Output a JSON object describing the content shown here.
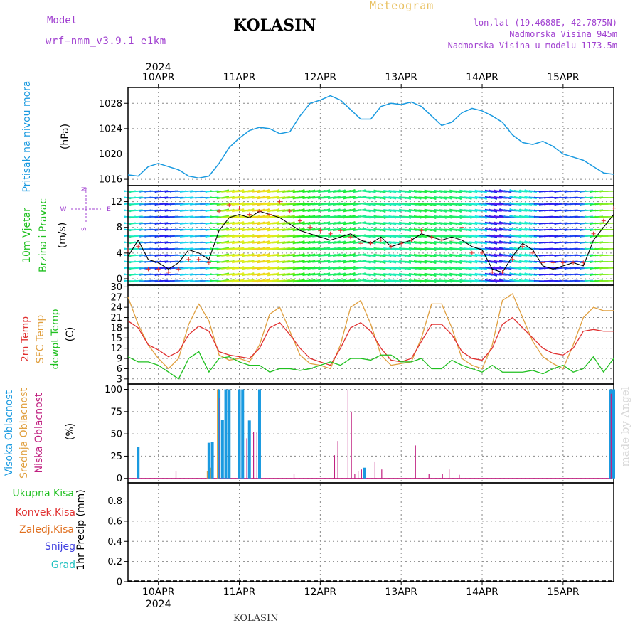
{
  "header": {
    "model_label": "Model",
    "model_name": "wrf−nmm_v3.9.1  e1km",
    "station": "KOLASIN",
    "meteogram_label": "Meteogram",
    "lonlat": "lon,lat (19.4688E, 42.7875N)",
    "elevation": "Nadmorska Visina 945m",
    "model_elevation": "Nadmorska Visina u modelu 1173.5m",
    "footer_station": "KOLASIN",
    "credit": "made by Angel"
  },
  "colors": {
    "model": "#a040d0",
    "station": "#000000",
    "meteogram": "#e8c060",
    "info": "#a040d0",
    "pressure": "#1a9ae0",
    "wind_label": "#20c020",
    "wind_compass": "#a040d0",
    "temp2m": "#e03030",
    "sfc_temp": "#e0a040",
    "dewpoint": "#20c020",
    "high_cloud": "#1a9ae0",
    "mid_cloud": "#e0a040",
    "low_cloud": "#c02080",
    "total_precip": "#20c020",
    "conv_precip": "#e03030",
    "frozen": "#e07020",
    "snow": "#4040e0",
    "hail": "#20c0c0",
    "credit": "#d8d8d8"
  },
  "chart_data": [
    {
      "type": "line",
      "panel": "pressure",
      "ylabel_left": "Pritisak na nivou mora",
      "ylabel_unit": "(hPa)",
      "yticks": [
        1016,
        1020,
        1024,
        1028
      ],
      "ylim": [
        1015,
        1030.5
      ],
      "x_unit": "hours from 2024-04-10 00:00",
      "xlim": [
        -9,
        135
      ],
      "grid": true,
      "series": [
        {
          "values_x": [
            -9,
            -6,
            -3,
            0,
            3,
            6,
            9,
            12,
            15,
            18,
            21,
            24,
            27,
            30,
            33,
            36,
            39,
            42,
            45,
            48,
            51,
            54,
            57,
            60,
            63,
            66,
            69,
            72,
            75,
            78,
            81,
            84,
            87,
            90,
            93,
            96,
            99,
            102,
            105,
            108,
            111,
            114,
            117,
            120,
            123,
            126,
            129,
            132,
            135
          ],
          "values": [
            1016.7,
            1016.5,
            1018.0,
            1018.5,
            1018.0,
            1017.5,
            1016.5,
            1016.2,
            1016.5,
            1018.5,
            1021.0,
            1022.5,
            1023.7,
            1024.2,
            1024.0,
            1023.2,
            1023.5,
            1026.0,
            1028.0,
            1028.5,
            1029.2,
            1028.5,
            1027.0,
            1025.5,
            1025.5,
            1027.5,
            1028.0,
            1027.8,
            1028.2,
            1027.5,
            1026.0,
            1024.5,
            1025.0,
            1026.5,
            1027.2,
            1026.8,
            1026.0,
            1025.0,
            1023.0,
            1021.8,
            1021.5,
            1022.0,
            1021.2,
            1020.0,
            1019.5,
            1019.0,
            1018.0,
            1017.0,
            1016.8
          ]
        }
      ]
    },
    {
      "type": "line",
      "panel": "wind",
      "ylabel_left": [
        "10m Vjetar",
        "Brzina i Pravac"
      ],
      "ylabel_unit": "(m/s)",
      "compass": {
        "n": "N",
        "w": "W",
        "e": "E",
        "s": "S"
      },
      "yticks": [
        0,
        4,
        8,
        12
      ],
      "ylim": [
        -1,
        14.5
      ],
      "x_unit": "hours from 2024-04-10 00:00",
      "xlim": [
        -9,
        135
      ],
      "grid": true,
      "series": [
        {
          "kind": "mean_speed",
          "values_x": [
            -9,
            -6,
            -3,
            0,
            3,
            6,
            9,
            12,
            15,
            18,
            21,
            24,
            27,
            30,
            33,
            36,
            39,
            42,
            45,
            48,
            51,
            54,
            57,
            60,
            63,
            66,
            69,
            72,
            75,
            78,
            81,
            84,
            87,
            90,
            93,
            96,
            99,
            102,
            105,
            108,
            111,
            114,
            117,
            120,
            123,
            126,
            129,
            132,
            135
          ],
          "values": [
            3.5,
            6.0,
            3.0,
            2.5,
            1.5,
            2.5,
            4.5,
            4.0,
            3.0,
            7.5,
            9.5,
            10.0,
            9.5,
            10.5,
            10.0,
            9.5,
            8.5,
            7.5,
            7.0,
            6.5,
            6.0,
            6.5,
            7.0,
            6.0,
            5.5,
            6.5,
            5.0,
            5.5,
            6.0,
            7.0,
            6.5,
            6.0,
            6.5,
            6.0,
            5.0,
            4.5,
            1.5,
            1.0,
            3.5,
            5.5,
            4.5,
            2.0,
            1.5,
            2.0,
            2.5,
            2.0,
            6.0,
            8.0,
            10.0
          ]
        },
        {
          "kind": "gust",
          "values_x": [
            -9,
            -6,
            -3,
            0,
            3,
            6,
            9,
            12,
            15,
            18,
            21,
            24,
            27,
            30,
            33,
            36,
            39,
            42,
            45,
            48,
            51,
            54,
            57,
            60,
            63,
            66,
            69,
            72,
            75,
            78,
            81,
            84,
            87,
            90,
            93,
            96,
            99,
            102,
            105,
            108,
            111,
            114,
            117,
            120,
            123,
            126,
            129,
            132,
            135
          ],
          "values": [
            4.5,
            5.0,
            1.5,
            1.5,
            1.0,
            1.5,
            3.0,
            3.0,
            2.5,
            10.5,
            11.5,
            11.0,
            10.0,
            10.5,
            10.0,
            12.0,
            10.5,
            9.0,
            8.0,
            7.5,
            7.0,
            7.5,
            6.5,
            5.5,
            5.5,
            6.0,
            5.0,
            5.5,
            6.0,
            7.5,
            6.5,
            6.0,
            6.0,
            8.0,
            4.0,
            4.0,
            1.0,
            1.0,
            3.0,
            5.0,
            4.0,
            2.5,
            2.5,
            2.5,
            2.5,
            2.5,
            7.0,
            9.0,
            11.0
          ]
        }
      ]
    },
    {
      "type": "line",
      "panel": "temperature",
      "ylabel_left": [
        "2m Temp",
        "SFC Temp",
        "dewpt Temp"
      ],
      "ylabel_unit": "(C)",
      "yticks": [
        3,
        6,
        9,
        12,
        15,
        18,
        21,
        24,
        27,
        30
      ],
      "ylim": [
        1.5,
        30.5
      ],
      "x_unit": "hours from 2024-04-10 00:00",
      "xlim": [
        -9,
        135
      ],
      "grid": true,
      "series": [
        {
          "name": "2m Temp",
          "values_x": [
            -9,
            -6,
            -3,
            0,
            3,
            6,
            9,
            12,
            15,
            18,
            21,
            24,
            27,
            30,
            33,
            36,
            39,
            42,
            45,
            48,
            51,
            54,
            57,
            60,
            63,
            66,
            69,
            72,
            75,
            78,
            81,
            84,
            87,
            90,
            93,
            96,
            99,
            102,
            105,
            108,
            111,
            114,
            117,
            120,
            123,
            126,
            129,
            132,
            135
          ],
          "values": [
            20,
            18,
            13,
            11.5,
            9.5,
            11,
            16,
            18.5,
            17,
            11,
            10,
            9.5,
            9,
            12,
            18,
            19.5,
            16,
            12,
            9,
            8,
            7,
            12,
            18,
            19.5,
            17,
            12,
            8.5,
            8,
            9,
            14,
            19,
            19,
            16,
            11,
            9,
            8.5,
            12,
            19,
            21,
            18,
            15,
            12,
            10.5,
            10,
            12,
            17,
            17.5,
            17,
            17
          ]
        },
        {
          "name": "SFC Temp",
          "values_x": [
            -9,
            -6,
            -3,
            0,
            3,
            6,
            9,
            12,
            15,
            18,
            21,
            24,
            27,
            30,
            33,
            36,
            39,
            42,
            45,
            48,
            51,
            54,
            57,
            60,
            63,
            66,
            69,
            72,
            75,
            78,
            81,
            84,
            87,
            90,
            93,
            96,
            99,
            102,
            105,
            108,
            111,
            114,
            117,
            120,
            123,
            126,
            129,
            132,
            135
          ],
          "values": [
            27,
            19,
            13,
            9,
            6,
            9,
            19,
            25,
            20,
            10,
            8.5,
            9,
            8,
            13,
            22,
            24,
            17,
            10,
            7.5,
            7,
            6,
            13,
            24,
            26,
            19,
            10,
            7,
            7.5,
            8,
            15,
            25,
            25,
            18,
            9,
            7,
            6,
            13,
            26,
            28,
            21,
            14,
            9.5,
            7.5,
            6,
            13,
            21,
            24,
            23,
            23
          ]
        },
        {
          "name": "dewpt Temp",
          "values_x": [
            -9,
            -6,
            -3,
            0,
            3,
            6,
            9,
            12,
            15,
            18,
            21,
            24,
            27,
            30,
            33,
            36,
            39,
            42,
            45,
            48,
            51,
            54,
            57,
            60,
            63,
            66,
            69,
            72,
            75,
            78,
            81,
            84,
            87,
            90,
            93,
            96,
            99,
            102,
            105,
            108,
            111,
            114,
            117,
            120,
            123,
            126,
            129,
            132,
            135
          ],
          "values": [
            9.5,
            8,
            8,
            7,
            5,
            3,
            9,
            11,
            5,
            9,
            9.5,
            8,
            7,
            7,
            5,
            6,
            6,
            5.5,
            6,
            7,
            8,
            7,
            9,
            9,
            8.5,
            10,
            10,
            8,
            8,
            9,
            6,
            6,
            8.5,
            7,
            6,
            5,
            7,
            5,
            5,
            5,
            5.5,
            4.5,
            6,
            7,
            5,
            6,
            9.5,
            5,
            9
          ]
        }
      ]
    },
    {
      "type": "bar",
      "panel": "cloud",
      "ylabel_left": [
        "Visoka Oblacnost",
        "Srednja Oblacnost",
        "Niska Oblacnost"
      ],
      "ylabel_unit": "(%)",
      "yticks": [
        0,
        25,
        50,
        75,
        100
      ],
      "ylim": [
        -5,
        106
      ],
      "x_unit": "hours from 2024-04-10 00:00",
      "xlim": [
        -9,
        135
      ],
      "grid": true,
      "series": [
        {
          "name": "Visoka Oblacnost",
          "x": [
            -6,
            15,
            16,
            18,
            19,
            20,
            21,
            24,
            25,
            27,
            30,
            61,
            134,
            135
          ],
          "values": [
            35,
            40,
            41,
            100,
            66,
            100,
            100,
            100,
            100,
            65,
            100,
            12,
            100,
            100
          ]
        },
        {
          "name": "Srednja Oblacnost",
          "x": [
            15,
            16,
            18
          ],
          "values": [
            8,
            12,
            100
          ],
          "hidden_behind_high": true
        },
        {
          "name": "Niska Oblacnost",
          "x": [
            5,
            18,
            26,
            28,
            29,
            40,
            52,
            53,
            56,
            57,
            58,
            59,
            60,
            64,
            66,
            76,
            80,
            84,
            86,
            89,
            134
          ],
          "values": [
            8,
            90,
            45,
            52,
            52,
            5,
            26,
            42,
            100,
            75,
            5,
            8,
            10,
            19,
            10,
            37,
            5,
            5,
            10,
            4,
            95
          ]
        }
      ]
    },
    {
      "type": "bar",
      "panel": "precipitation",
      "ylabel_left": [
        "Ukupna Kisa",
        "Konvek.Kisa",
        "Zaledj.Kisa",
        "Snijeg",
        "Grad"
      ],
      "ylabel_unit": "1hr Precip (mm)",
      "yticks": [
        0,
        0.2,
        0.4,
        0.6,
        0.8
      ],
      "ylim": [
        0,
        0.98
      ],
      "x_unit": "hours from 2024-04-10 00:00",
      "xlim": [
        -9,
        135
      ],
      "grid": true,
      "series": [
        {
          "name": "Ukupna Kisa",
          "x": [],
          "values": []
        },
        {
          "name": "Konvek.Kisa",
          "x": [],
          "values": []
        },
        {
          "name": "Zaledj.Kisa",
          "x": [],
          "values": []
        },
        {
          "name": "Snijeg",
          "x": [],
          "values": []
        },
        {
          "name": "Grad",
          "x": [],
          "values": []
        }
      ]
    }
  ],
  "x_axis": {
    "year": "2024",
    "tick_labels": [
      "10APR",
      "11APR",
      "12APR",
      "13APR",
      "14APR",
      "15APR"
    ],
    "tick_hours": [
      0,
      24,
      48,
      72,
      96,
      120
    ]
  }
}
